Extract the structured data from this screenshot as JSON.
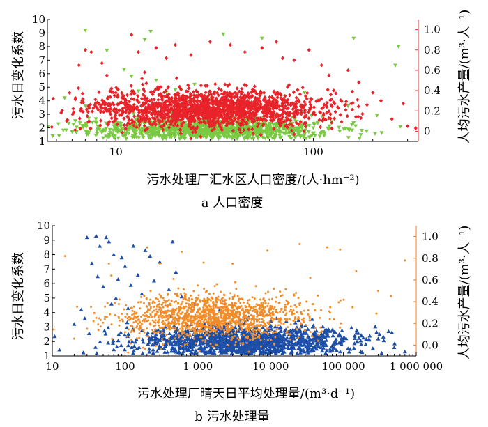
{
  "chart_data": [
    {
      "type": "scatter",
      "panel_caption": "a 人口密度",
      "xlabel": "污水处理厂汇水区人口密度/(人·hm⁻²)",
      "xscale": "log",
      "xlim": [
        4.5,
        340
      ],
      "x_ticks": [
        10,
        100
      ],
      "x_tick_labels": [
        "10",
        "100"
      ],
      "ylabel_left": "污水日变化系数",
      "ylim_left": [
        1,
        10
      ],
      "y_ticks_left": [
        "1",
        "2",
        "3",
        "4",
        "5",
        "6",
        "7",
        "8",
        "9",
        "10"
      ],
      "ylabel_right": "人均污水产量/(m³·人⁻¹)",
      "ylim_right": [
        -0.1,
        1.1
      ],
      "y_ticks_right": [
        "0",
        "0.2",
        "0.4",
        "0.6",
        "0.8",
        "1.0"
      ],
      "right_axis_color": "#e03030",
      "left_axis_color": "#7ac943",
      "grid": false,
      "legend": "none",
      "series": [
        {
          "marker": "triangle-down",
          "color": "#7ac943",
          "axis": "left",
          "cloud": {
            "n": 1150,
            "x_log_mean": 1.48,
            "x_log_sd": 0.3,
            "y_mean": 1.9,
            "y_sd": 0.35
          },
          "extra": [
            [
              7,
              9.2
            ],
            [
              15,
              9.1
            ],
            [
              14,
              8.5
            ],
            [
              35,
              8.9
            ],
            [
              55,
              8.6
            ],
            [
              160,
              8.6
            ],
            [
              270,
              8.0
            ],
            [
              260,
              6.6
            ],
            [
              5.5,
              4.2
            ],
            [
              6,
              1.7
            ],
            [
              7,
              3.6
            ],
            [
              9,
              7.7
            ],
            [
              11,
              6.3
            ],
            [
              12,
              5.8
            ],
            [
              13,
              4.7
            ],
            [
              16,
              5.5
            ],
            [
              18,
              4.6
            ],
            [
              20,
              4.8
            ],
            [
              25,
              5.2
            ],
            [
              30,
              4.1
            ],
            [
              60,
              3.3
            ],
            [
              90,
              4.6
            ],
            [
              150,
              3.6
            ],
            [
              210,
              2.9
            ]
          ]
        },
        {
          "marker": "diamond",
          "color": "#e8232a",
          "axis": "right",
          "cloud": {
            "n": 1700,
            "x_log_mean": 1.48,
            "x_log_sd": 0.3,
            "y_mean": 0.22,
            "y_sd": 0.08
          },
          "extra": [
            [
              6.5,
              0.65
            ],
            [
              7,
              0.8
            ],
            [
              7.5,
              0.78
            ],
            [
              8.5,
              0.67
            ],
            [
              9,
              0.55
            ],
            [
              9.5,
              0.42
            ],
            [
              10,
              0.38
            ],
            [
              11,
              0.32
            ],
            [
              12,
              0.95
            ],
            [
              13,
              0.78
            ],
            [
              14,
              0.58
            ],
            [
              16,
              0.82
            ],
            [
              18,
              0.72
            ],
            [
              20,
              0.85
            ],
            [
              24,
              0.75
            ],
            [
              30,
              0.88
            ],
            [
              38,
              0.85
            ],
            [
              45,
              0.78
            ],
            [
              55,
              0.82
            ],
            [
              65,
              0.88
            ],
            [
              70,
              0.72
            ],
            [
              80,
              0.7
            ],
            [
              95,
              0.8
            ],
            [
              110,
              0.65
            ],
            [
              120,
              0.55
            ],
            [
              150,
              0.6
            ],
            [
              170,
              0.48
            ],
            [
              200,
              0.38
            ],
            [
              220,
              0.3
            ],
            [
              250,
              0.12
            ],
            [
              300,
              0.05
            ],
            [
              330,
              0.03
            ]
          ]
        }
      ]
    },
    {
      "type": "scatter",
      "panel_caption": "b 污水处理量",
      "xlabel": "污水处理厂晴天日平均处理量/(m³·d⁻¹)",
      "xscale": "log",
      "xlim": [
        10,
        1000000
      ],
      "x_ticks": [
        10,
        100,
        1000,
        10000,
        100000,
        1000000
      ],
      "x_tick_labels": [
        "10",
        "100",
        "1 000",
        "10 000",
        "100 000",
        "1 000 000"
      ],
      "ylabel_left": "污水日变化系数",
      "ylim_left": [
        1,
        10
      ],
      "y_ticks_left": [
        "1",
        "2",
        "3",
        "4",
        "5",
        "6",
        "7",
        "8",
        "9",
        "10"
      ],
      "ylabel_right": "人均污水产量/(m³·人⁻¹)",
      "ylim_right": [
        -0.1,
        1.1
      ],
      "y_ticks_right": [
        "0.0",
        "0.2",
        "0.4",
        "0.6",
        "0.8",
        "1.0"
      ],
      "right_axis_color": "#f07f1f",
      "left_axis_color": "#1e4fa8",
      "grid": false,
      "legend": "none",
      "series": [
        {
          "marker": "triangle-up",
          "color": "#1e4fa8",
          "axis": "left",
          "cloud": {
            "n": 1300,
            "x_log_mean": 3.6,
            "x_log_sd": 0.75,
            "y_mean": 2.05,
            "y_sd": 0.45
          },
          "extra": [
            [
              30,
              9.2
            ],
            [
              40,
              9.3
            ],
            [
              55,
              9.2
            ],
            [
              60,
              8.9
            ],
            [
              45,
              8.6
            ],
            [
              70,
              8.0
            ],
            [
              90,
              7.8
            ],
            [
              100,
              7.2
            ],
            [
              130,
              8.6
            ],
            [
              190,
              8.3
            ],
            [
              220,
              7.9
            ],
            [
              300,
              7.5
            ],
            [
              450,
              8.9
            ],
            [
              500,
              6.8
            ],
            [
              35,
              7.4
            ],
            [
              42,
              6.5
            ],
            [
              50,
              5.8
            ],
            [
              80,
              6.3
            ],
            [
              120,
              5.9
            ],
            [
              150,
              6.6
            ],
            [
              170,
              5.3
            ],
            [
              250,
              6.2
            ],
            [
              400,
              5.6
            ],
            [
              20,
              3.2
            ],
            [
              25,
              4.2
            ],
            [
              28,
              3.6
            ],
            [
              65,
              4.6
            ],
            [
              75,
              5.0
            ],
            [
              110,
              4.3
            ],
            [
              600,
              5.1
            ],
            [
              900,
              4.6
            ],
            [
              2000,
              4.2
            ],
            [
              5000,
              3.7
            ],
            [
              12000,
              3.6
            ],
            [
              30000,
              3.1
            ],
            [
              60000,
              2.6
            ],
            [
              150000,
              2.6
            ],
            [
              300000,
              2.2
            ],
            [
              500000,
              1.6
            ],
            [
              700000,
              1.3
            ]
          ]
        },
        {
          "marker": "dot",
          "color": "#f28c28",
          "axis": "right",
          "cloud": {
            "n": 1500,
            "x_log_mean": 3.2,
            "x_log_sd": 0.65,
            "y_mean": 0.26,
            "y_sd": 0.09
          },
          "extra": [
            [
              15,
              0.82
            ],
            [
              20,
              0.06
            ],
            [
              30,
              0.15
            ],
            [
              60,
              0.75
            ],
            [
              100,
              0.12
            ],
            [
              200,
              0.9
            ],
            [
              300,
              0.75
            ],
            [
              600,
              0.86
            ],
            [
              1200,
              0.76
            ],
            [
              3000,
              0.75
            ],
            [
              9000,
              0.87
            ],
            [
              25000,
              0.93
            ],
            [
              35000,
              0.62
            ],
            [
              60000,
              0.9
            ],
            [
              90000,
              0.88
            ],
            [
              150000,
              0.68
            ],
            [
              300000,
              0.5
            ],
            [
              450000,
              0.45
            ],
            [
              700000,
              0.78
            ]
          ]
        }
      ]
    }
  ]
}
